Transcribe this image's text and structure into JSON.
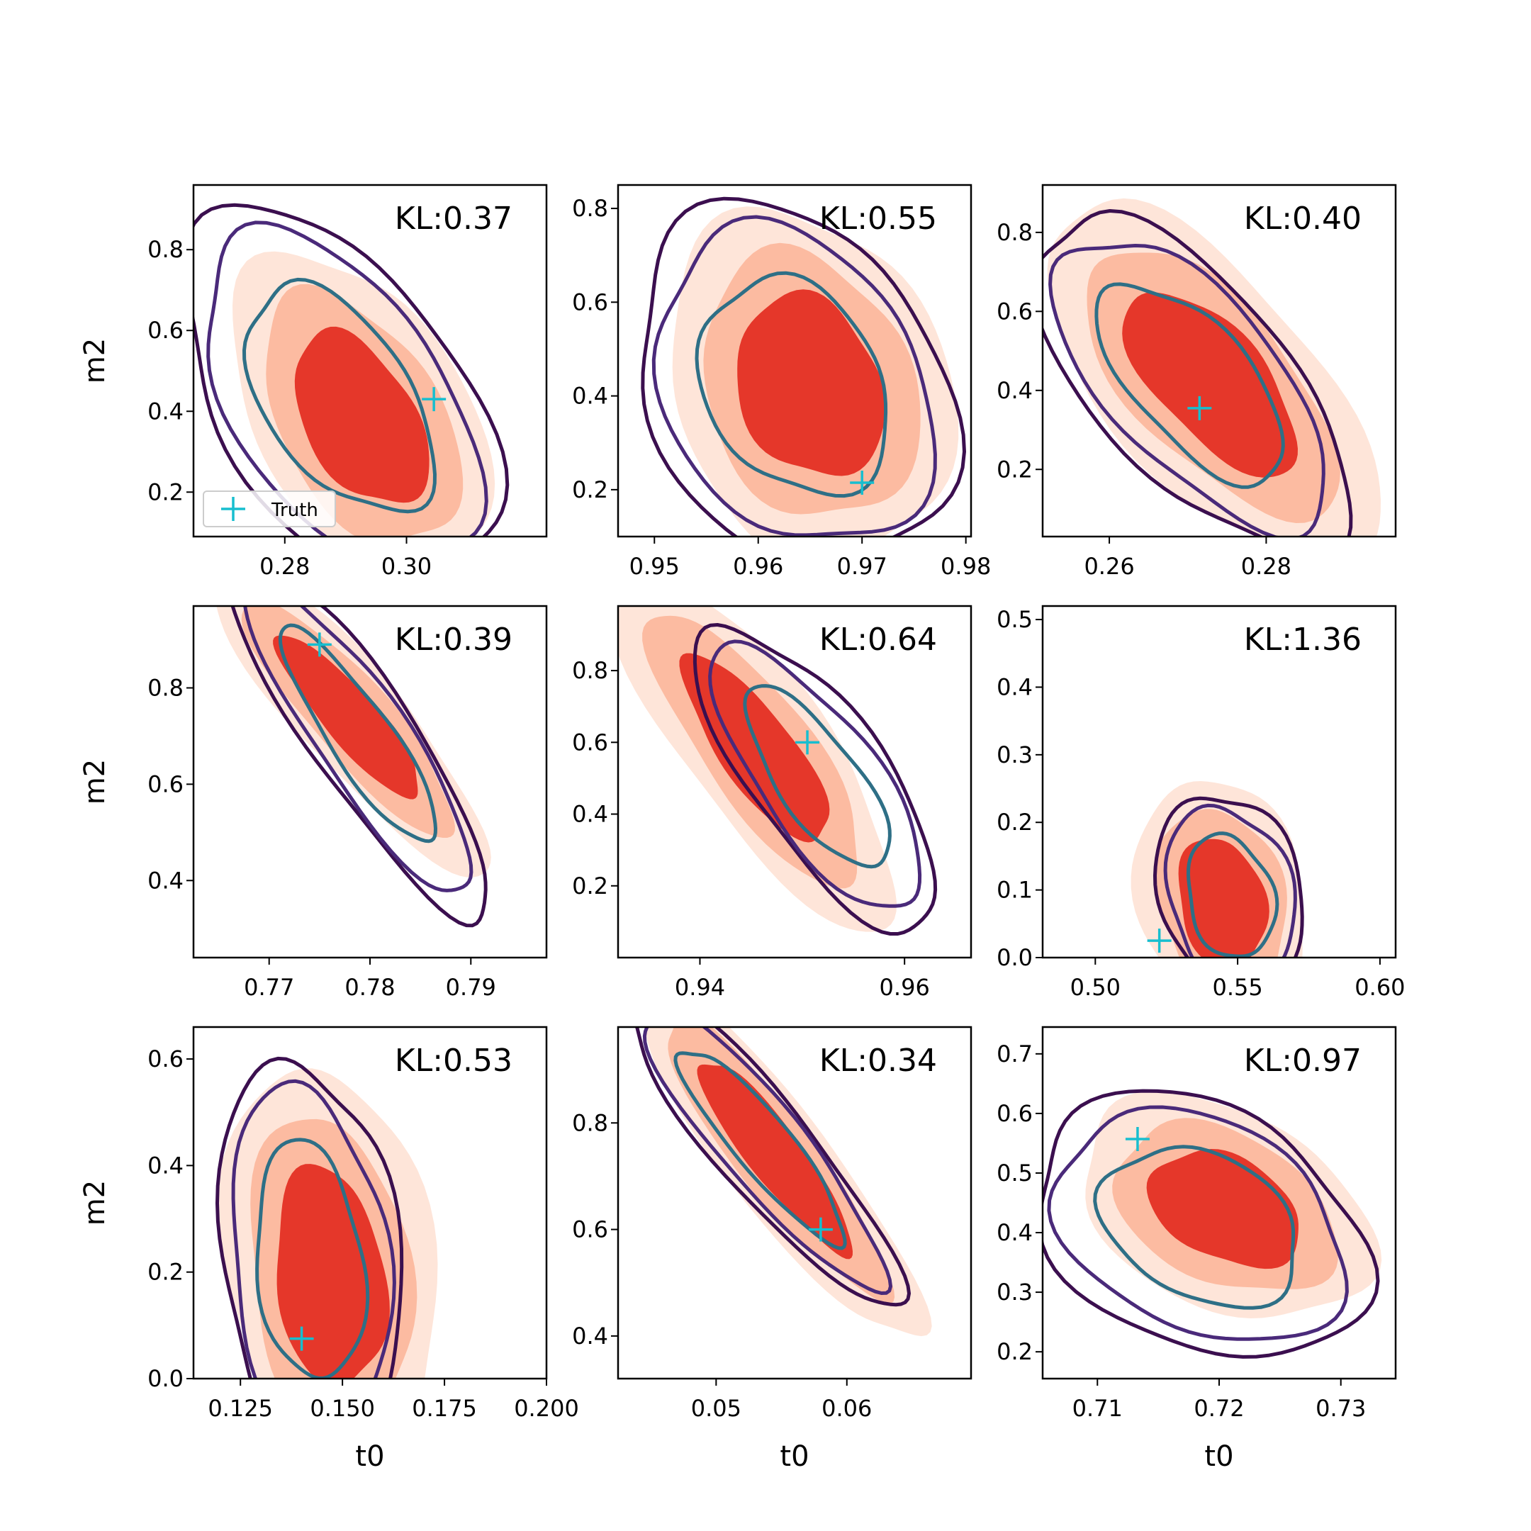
{
  "colors": {
    "fill_outer": "#fee5d9",
    "fill_mid": "#fcbba1",
    "fill_inner": "#e5372a",
    "contour_outer": "#3b0f4f",
    "contour_mid": "#4a2a7a",
    "contour_inner": "#2e6f86",
    "truth": "#17becf"
  },
  "legend": {
    "label": "Truth"
  },
  "chart_data": [
    {
      "type": "contour",
      "kl_label": "KL:0.37",
      "xlabel": "",
      "ylabel": "m2",
      "xlim": [
        0.265,
        0.323
      ],
      "ylim": [
        0.09,
        0.96
      ],
      "xticks": [
        0.28,
        0.3
      ],
      "xtick_labels": [
        "0.28",
        "0.30"
      ],
      "yticks": [
        0.2,
        0.4,
        0.6,
        0.8
      ],
      "ytick_labels": [
        "0.2",
        "0.4",
        "0.6",
        "0.8"
      ],
      "truth": [
        0.3045,
        0.43
      ],
      "center": [
        0.2925,
        0.38
      ],
      "spread": [
        0.0085,
        0.165
      ],
      "rho": -0.45,
      "sample_center": [
        0.289,
        0.43
      ],
      "sample_spread": [
        0.011,
        0.2
      ],
      "sample_rho": -0.5,
      "legend": true
    },
    {
      "type": "contour",
      "kl_label": "KL:0.55",
      "xlabel": "",
      "ylabel": "",
      "xlim": [
        0.9465,
        0.9805
      ],
      "ylim": [
        0.1,
        0.85
      ],
      "xticks": [
        0.95,
        0.96,
        0.97,
        0.98
      ],
      "xtick_labels": [
        "0.95",
        "0.96",
        "0.97",
        "0.98"
      ],
      "yticks": [
        0.2,
        0.4,
        0.6,
        0.8
      ],
      "ytick_labels": [
        "0.2",
        "0.4",
        "0.6",
        "0.8"
      ],
      "truth": [
        0.97,
        0.215
      ],
      "center": [
        0.965,
        0.42
      ],
      "spread": [
        0.0055,
        0.15
      ],
      "rho": -0.2,
      "sample_center": [
        0.9635,
        0.42
      ],
      "sample_spread": [
        0.0065,
        0.165
      ],
      "sample_rho": -0.25,
      "legend": false
    },
    {
      "type": "contour",
      "kl_label": "KL:0.40",
      "xlabel": "",
      "ylabel": "",
      "xlim": [
        0.2515,
        0.2965
      ],
      "ylim": [
        0.03,
        0.92
      ],
      "xticks": [
        0.26,
        0.28
      ],
      "xtick_labels": [
        "0.26",
        "0.28"
      ],
      "yticks": [
        0.2,
        0.4,
        0.6,
        0.8
      ],
      "ytick_labels": [
        "0.2",
        "0.4",
        "0.6",
        "0.8"
      ],
      "truth": [
        0.2715,
        0.355
      ],
      "center": [
        0.273,
        0.42
      ],
      "spread": [
        0.0085,
        0.18
      ],
      "rho": -0.65,
      "sample_center": [
        0.2705,
        0.42
      ],
      "sample_spread": [
        0.0085,
        0.18
      ],
      "sample_rho": -0.65,
      "legend": false
    },
    {
      "type": "contour",
      "kl_label": "KL:0.39",
      "xlabel": "",
      "ylabel": "m2",
      "xlim": [
        0.7625,
        0.7975
      ],
      "ylim": [
        0.24,
        0.97
      ],
      "xticks": [
        0.77,
        0.78,
        0.79
      ],
      "xtick_labels": [
        "0.77",
        "0.78",
        "0.79"
      ],
      "yticks": [
        0.4,
        0.6,
        0.8
      ],
      "ytick_labels": [
        "0.4",
        "0.6",
        "0.8"
      ],
      "truth": [
        0.775,
        0.89
      ],
      "center": [
        0.778,
        0.74
      ],
      "spread": [
        0.0055,
        0.13
      ],
      "rho": -0.88,
      "sample_center": [
        0.779,
        0.7
      ],
      "sample_spread": [
        0.0055,
        0.16
      ],
      "sample_rho": -0.88,
      "legend": false
    },
    {
      "type": "contour",
      "kl_label": "KL:0.64",
      "xlabel": "",
      "ylabel": "",
      "xlim": [
        0.932,
        0.9665
      ],
      "ylim": [
        0.0,
        0.98
      ],
      "xticks": [
        0.94,
        0.96
      ],
      "xtick_labels": [
        "0.94",
        "0.96"
      ],
      "yticks": [
        0.2,
        0.4,
        0.6,
        0.8
      ],
      "ytick_labels": [
        "0.2",
        "0.4",
        "0.6",
        "0.8"
      ],
      "truth": [
        0.9505,
        0.6
      ],
      "center": [
        0.9455,
        0.58
      ],
      "spread": [
        0.0055,
        0.2
      ],
      "rho": -0.8,
      "sample_center": [
        0.9515,
        0.5
      ],
      "sample_spread": [
        0.005,
        0.18
      ],
      "sample_rho": -0.75,
      "legend": false
    },
    {
      "type": "contour",
      "kl_label": "KL:1.36",
      "xlabel": "",
      "ylabel": "",
      "xlim": [
        0.4815,
        0.6055
      ],
      "ylim": [
        0.0,
        0.52
      ],
      "xticks": [
        0.5,
        0.55,
        0.6
      ],
      "xtick_labels": [
        "0.50",
        "0.55",
        "0.60"
      ],
      "yticks": [
        0.0,
        0.1,
        0.2,
        0.3,
        0.4,
        0.5
      ],
      "ytick_labels": [
        "0.0",
        "0.1",
        "0.2",
        "0.3",
        "0.4",
        "0.5"
      ],
      "truth": [
        0.5225,
        0.025
      ],
      "center": [
        0.5445,
        0.08
      ],
      "spread": [
        0.012,
        0.075
      ],
      "rho": -0.2,
      "sample_center": [
        0.5475,
        0.09
      ],
      "sample_spread": [
        0.011,
        0.065
      ],
      "sample_rho": -0.2,
      "legend": false
    },
    {
      "type": "contour",
      "kl_label": "KL:0.53",
      "xlabel": "t0",
      "ylabel": "m2",
      "xlim": [
        0.1135,
        0.2
      ],
      "ylim": [
        0.0,
        0.66
      ],
      "xticks": [
        0.125,
        0.15,
        0.175,
        0.2
      ],
      "xtick_labels": [
        "0.125",
        "0.150",
        "0.175",
        "0.200"
      ],
      "yticks": [
        0.0,
        0.2,
        0.4,
        0.6
      ],
      "ytick_labels": [
        "0.0",
        "0.2",
        "0.4",
        "0.6"
      ],
      "truth": [
        0.14,
        0.075
      ],
      "center": [
        0.147,
        0.19
      ],
      "spread": [
        0.0105,
        0.16
      ],
      "rho": -0.2,
      "sample_center": [
        0.142,
        0.22
      ],
      "sample_spread": [
        0.0095,
        0.16
      ],
      "sample_rho": -0.2,
      "legend": false
    },
    {
      "type": "contour",
      "kl_label": "KL:0.34",
      "xlabel": "t0",
      "ylabel": "",
      "xlim": [
        0.0425,
        0.0695
      ],
      "ylim": [
        0.32,
        0.98
      ],
      "xticks": [
        0.05,
        0.06
      ],
      "xtick_labels": [
        "0.05",
        "0.06"
      ],
      "yticks": [
        0.4,
        0.6,
        0.8
      ],
      "ytick_labels": [
        "0.4",
        "0.6",
        "0.8"
      ],
      "truth": [
        0.058,
        0.6
      ],
      "center": [
        0.0545,
        0.74
      ],
      "spread": [
        0.0045,
        0.14
      ],
      "rho": -0.9,
      "sample_center": [
        0.0535,
        0.76
      ],
      "sample_spread": [
        0.0045,
        0.13
      ],
      "sample_rho": -0.9,
      "legend": false
    },
    {
      "type": "contour",
      "kl_label": "KL:0.97",
      "xlabel": "t0",
      "ylabel": "",
      "xlim": [
        0.7055,
        0.7345
      ],
      "ylim": [
        0.155,
        0.745
      ],
      "xticks": [
        0.71,
        0.72,
        0.73
      ],
      "xtick_labels": [
        "0.71",
        "0.72",
        "0.73"
      ],
      "yticks": [
        0.2,
        0.3,
        0.4,
        0.5,
        0.6,
        0.7
      ],
      "ytick_labels": [
        "0.2",
        "0.3",
        "0.4",
        "0.5",
        "0.6",
        "0.7"
      ],
      "truth": [
        0.7133,
        0.557
      ],
      "center": [
        0.7205,
        0.44
      ],
      "spread": [
        0.0048,
        0.075
      ],
      "rho": -0.35,
      "sample_center": [
        0.7185,
        0.41
      ],
      "sample_spread": [
        0.0058,
        0.095
      ],
      "sample_rho": -0.3,
      "legend": false
    }
  ]
}
